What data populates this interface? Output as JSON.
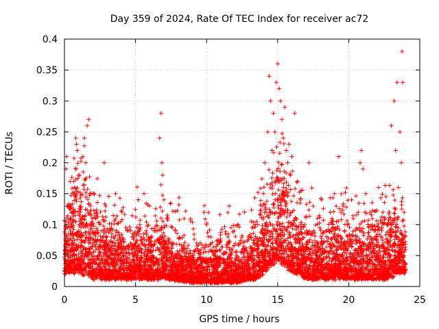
{
  "chart_data": {
    "type": "scatter",
    "title": "Day 359 of 2024, Rate Of TEC Index for receiver ac72",
    "xlabel": "GPS time / hours",
    "ylabel": "ROTI / TECUs",
    "xlim": [
      0,
      25
    ],
    "ylim": [
      0,
      0.4
    ],
    "xticks": [
      0,
      5,
      10,
      15,
      20,
      25
    ],
    "xtick_labels": [
      "0",
      "5",
      "10",
      "15",
      "20",
      "25"
    ],
    "yticks": [
      0,
      0.05,
      0.1,
      0.15,
      0.2,
      0.25,
      0.3,
      0.35,
      0.4
    ],
    "ytick_labels": [
      "0",
      "0.05",
      "0.1",
      "0.15",
      "0.2",
      "0.25",
      "0.3",
      "0.35",
      "0.4"
    ],
    "grid": true,
    "marker": "+",
    "color": "#ff0000",
    "series": [
      {
        "name": "ROTI",
        "points": [
          [
            0.05,
            0.02
          ],
          [
            0.1,
            0.19
          ],
          [
            0.15,
            0.21
          ],
          [
            0.2,
            0.13
          ],
          [
            0.3,
            0.04
          ],
          [
            0.4,
            0.17
          ],
          [
            0.5,
            0.1
          ],
          [
            0.6,
            0.06
          ],
          [
            0.7,
            0.16
          ],
          [
            0.8,
            0.24
          ],
          [
            0.85,
            0.23
          ],
          [
            0.9,
            0.22
          ],
          [
            1.0,
            0.18
          ],
          [
            1.1,
            0.13
          ],
          [
            1.2,
            0.08
          ],
          [
            1.3,
            0.21
          ],
          [
            1.4,
            0.24
          ],
          [
            1.5,
            0.2
          ],
          [
            1.6,
            0.26
          ],
          [
            1.7,
            0.27
          ],
          [
            1.8,
            0.15
          ],
          [
            1.9,
            0.1
          ],
          [
            2.0,
            0.07
          ],
          [
            2.2,
            0.11
          ],
          [
            2.4,
            0.05
          ],
          [
            2.6,
            0.09
          ],
          [
            2.8,
            0.2
          ],
          [
            2.9,
            0.13
          ],
          [
            3.1,
            0.06
          ],
          [
            3.3,
            0.08
          ],
          [
            3.6,
            0.15
          ],
          [
            3.8,
            0.07
          ],
          [
            4.1,
            0.05
          ],
          [
            4.4,
            0.09
          ],
          [
            4.7,
            0.06
          ],
          [
            5.0,
            0.07
          ],
          [
            5.3,
            0.1
          ],
          [
            5.6,
            0.15
          ],
          [
            5.9,
            0.08
          ],
          [
            6.2,
            0.05
          ],
          [
            6.5,
            0.09
          ],
          [
            6.7,
            0.24
          ],
          [
            6.8,
            0.28
          ],
          [
            6.85,
            0.2
          ],
          [
            6.9,
            0.18
          ],
          [
            7.0,
            0.14
          ],
          [
            7.2,
            0.11
          ],
          [
            7.5,
            0.07
          ],
          [
            7.8,
            0.09
          ],
          [
            8.1,
            0.05
          ],
          [
            8.4,
            0.06
          ],
          [
            8.7,
            0.04
          ],
          [
            9.0,
            0.05
          ],
          [
            9.3,
            0.07
          ],
          [
            9.6,
            0.06
          ],
          [
            10.0,
            0.1
          ],
          [
            10.3,
            0.08
          ],
          [
            10.6,
            0.05
          ],
          [
            10.9,
            0.07
          ],
          [
            11.2,
            0.04
          ],
          [
            11.5,
            0.08
          ],
          [
            11.8,
            0.06
          ],
          [
            12.1,
            0.05
          ],
          [
            12.4,
            0.07
          ],
          [
            12.7,
            0.06
          ],
          [
            13.0,
            0.08
          ],
          [
            13.3,
            0.07
          ],
          [
            13.6,
            0.1
          ],
          [
            13.9,
            0.13
          ],
          [
            14.1,
            0.2
          ],
          [
            14.3,
            0.25
          ],
          [
            14.4,
            0.34
          ],
          [
            14.5,
            0.3
          ],
          [
            14.6,
            0.22
          ],
          [
            14.7,
            0.28
          ],
          [
            14.8,
            0.25
          ],
          [
            14.9,
            0.33
          ],
          [
            15.0,
            0.36
          ],
          [
            15.1,
            0.32
          ],
          [
            15.2,
            0.3
          ],
          [
            15.3,
            0.27
          ],
          [
            15.4,
            0.24
          ],
          [
            15.5,
            0.29
          ],
          [
            15.6,
            0.22
          ],
          [
            15.7,
            0.2
          ],
          [
            15.8,
            0.23
          ],
          [
            15.9,
            0.18
          ],
          [
            16.0,
            0.21
          ],
          [
            16.2,
            0.28
          ],
          [
            16.4,
            0.17
          ],
          [
            16.6,
            0.14
          ],
          [
            16.9,
            0.1
          ],
          [
            17.2,
            0.2
          ],
          [
            17.5,
            0.13
          ],
          [
            17.8,
            0.11
          ],
          [
            18.1,
            0.14
          ],
          [
            18.4,
            0.09
          ],
          [
            18.7,
            0.12
          ],
          [
            19.0,
            0.15
          ],
          [
            19.3,
            0.21
          ],
          [
            19.6,
            0.13
          ],
          [
            19.9,
            0.1
          ],
          [
            20.2,
            0.14
          ],
          [
            20.5,
            0.07
          ],
          [
            20.8,
            0.2
          ],
          [
            20.9,
            0.22
          ],
          [
            21.0,
            0.19
          ],
          [
            21.2,
            0.15
          ],
          [
            21.5,
            0.12
          ],
          [
            21.8,
            0.09
          ],
          [
            22.1,
            0.16
          ],
          [
            22.4,
            0.12
          ],
          [
            22.7,
            0.1
          ],
          [
            23.0,
            0.26
          ],
          [
            23.2,
            0.3
          ],
          [
            23.3,
            0.22
          ],
          [
            23.4,
            0.33
          ],
          [
            23.5,
            0.16
          ],
          [
            23.6,
            0.25
          ],
          [
            23.7,
            0.2
          ],
          [
            23.75,
            0.38
          ],
          [
            23.8,
            0.33
          ],
          [
            23.9,
            0.12
          ],
          [
            24.0,
            0.06
          ]
        ]
      }
    ],
    "envelope": {
      "x": [
        0,
        0.5,
        1.0,
        1.5,
        2.0,
        3.0,
        4.0,
        5.0,
        6.0,
        6.8,
        7.5,
        9.0,
        10.0,
        11.0,
        12.0,
        13.0,
        13.5,
        14.0,
        14.5,
        15.0,
        15.5,
        16.0,
        16.5,
        17.0,
        18.0,
        19.0,
        20.0,
        21.0,
        22.0,
        23.0,
        23.5,
        24.0
      ],
      "upper": [
        0.1,
        0.13,
        0.14,
        0.15,
        0.11,
        0.08,
        0.07,
        0.08,
        0.07,
        0.09,
        0.06,
        0.05,
        0.05,
        0.05,
        0.05,
        0.06,
        0.08,
        0.11,
        0.16,
        0.17,
        0.16,
        0.12,
        0.1,
        0.08,
        0.08,
        0.09,
        0.08,
        0.08,
        0.09,
        0.1,
        0.11,
        0.09
      ],
      "lower": [
        0.02,
        0.02,
        0.02,
        0.015,
        0.01,
        0.01,
        0.01,
        0.01,
        0.01,
        0.01,
        0.01,
        0.005,
        0.005,
        0.005,
        0.005,
        0.01,
        0.01,
        0.02,
        0.03,
        0.04,
        0.03,
        0.02,
        0.02,
        0.01,
        0.01,
        0.01,
        0.01,
        0.01,
        0.01,
        0.01,
        0.02,
        0.02
      ]
    }
  }
}
